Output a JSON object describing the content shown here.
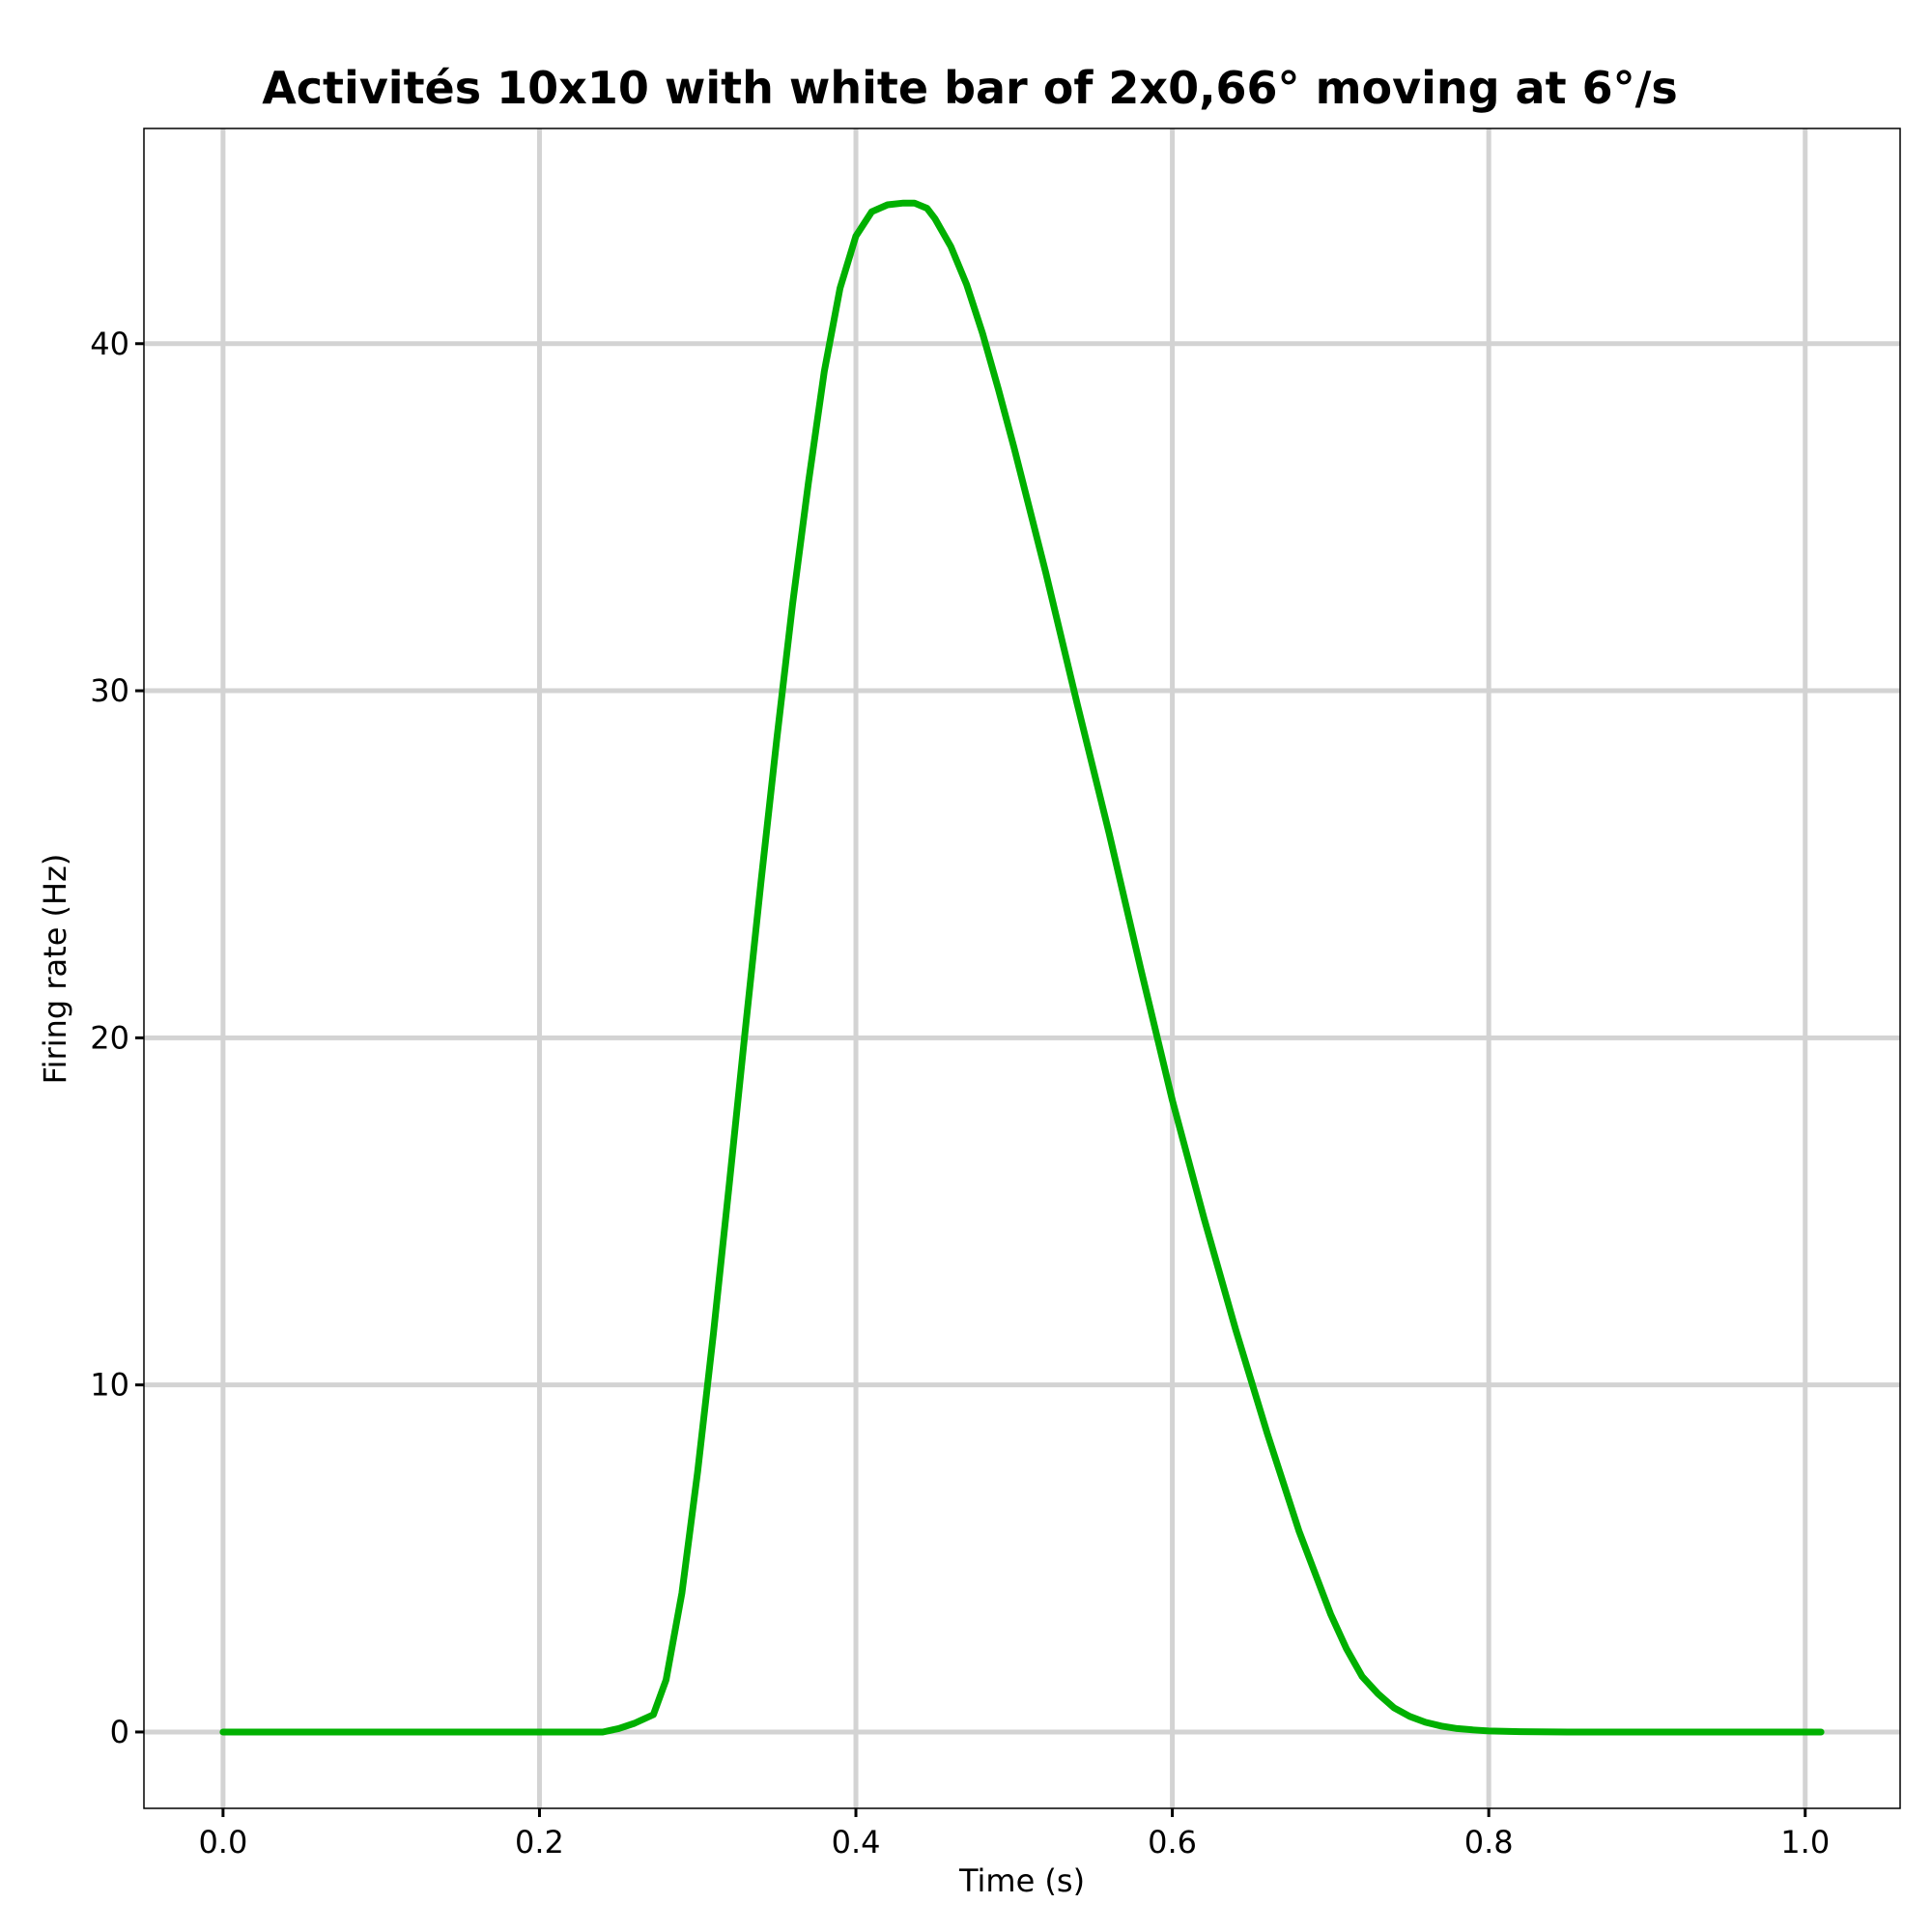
{
  "chart_data": {
    "type": "line",
    "title": "Activités 10x10 with white bar of 2x0,66° moving at 6°/s",
    "xlabel": "Time (s)",
    "ylabel": "Firing rate (Hz)",
    "xlim": [
      -0.05,
      1.06
    ],
    "ylim": [
      -2.2,
      46.2
    ],
    "x_ticks": [
      0.0,
      0.2,
      0.4,
      0.6,
      0.8,
      1.0
    ],
    "x_tick_labels": [
      "0.0",
      "0.2",
      "0.4",
      "0.6",
      "0.8",
      "1.0"
    ],
    "y_ticks": [
      0,
      10,
      20,
      30,
      40
    ],
    "y_tick_labels": [
      "0",
      "10",
      "20",
      "30",
      "40"
    ],
    "grid": true,
    "legend": false,
    "series": [
      {
        "color": "#00b000",
        "x": [
          0.0,
          0.1,
          0.2,
          0.24,
          0.25,
          0.26,
          0.272,
          0.28,
          0.29,
          0.3,
          0.31,
          0.32,
          0.33,
          0.34,
          0.35,
          0.36,
          0.37,
          0.38,
          0.39,
          0.4,
          0.41,
          0.42,
          0.43,
          0.437,
          0.445,
          0.45,
          0.46,
          0.47,
          0.48,
          0.49,
          0.5,
          0.52,
          0.54,
          0.56,
          0.58,
          0.6,
          0.62,
          0.64,
          0.66,
          0.68,
          0.7,
          0.71,
          0.72,
          0.73,
          0.74,
          0.75,
          0.76,
          0.77,
          0.78,
          0.79,
          0.8,
          0.82,
          0.85,
          0.9,
          0.95,
          1.01
        ],
        "y": [
          0.0,
          0.0,
          0.0,
          0.0,
          0.1,
          0.25,
          0.5,
          1.5,
          4.0,
          7.5,
          11.5,
          15.8,
          20.2,
          24.5,
          28.6,
          32.5,
          36.0,
          39.2,
          41.6,
          43.1,
          43.8,
          44.0,
          44.05,
          44.05,
          43.9,
          43.6,
          42.8,
          41.7,
          40.3,
          38.7,
          37.0,
          33.4,
          29.6,
          25.9,
          22.0,
          18.2,
          14.8,
          11.6,
          8.6,
          5.8,
          3.4,
          2.4,
          1.6,
          1.1,
          0.7,
          0.45,
          0.28,
          0.17,
          0.1,
          0.06,
          0.03,
          0.01,
          0.0,
          0.0,
          0.0,
          0.0
        ]
      }
    ]
  }
}
